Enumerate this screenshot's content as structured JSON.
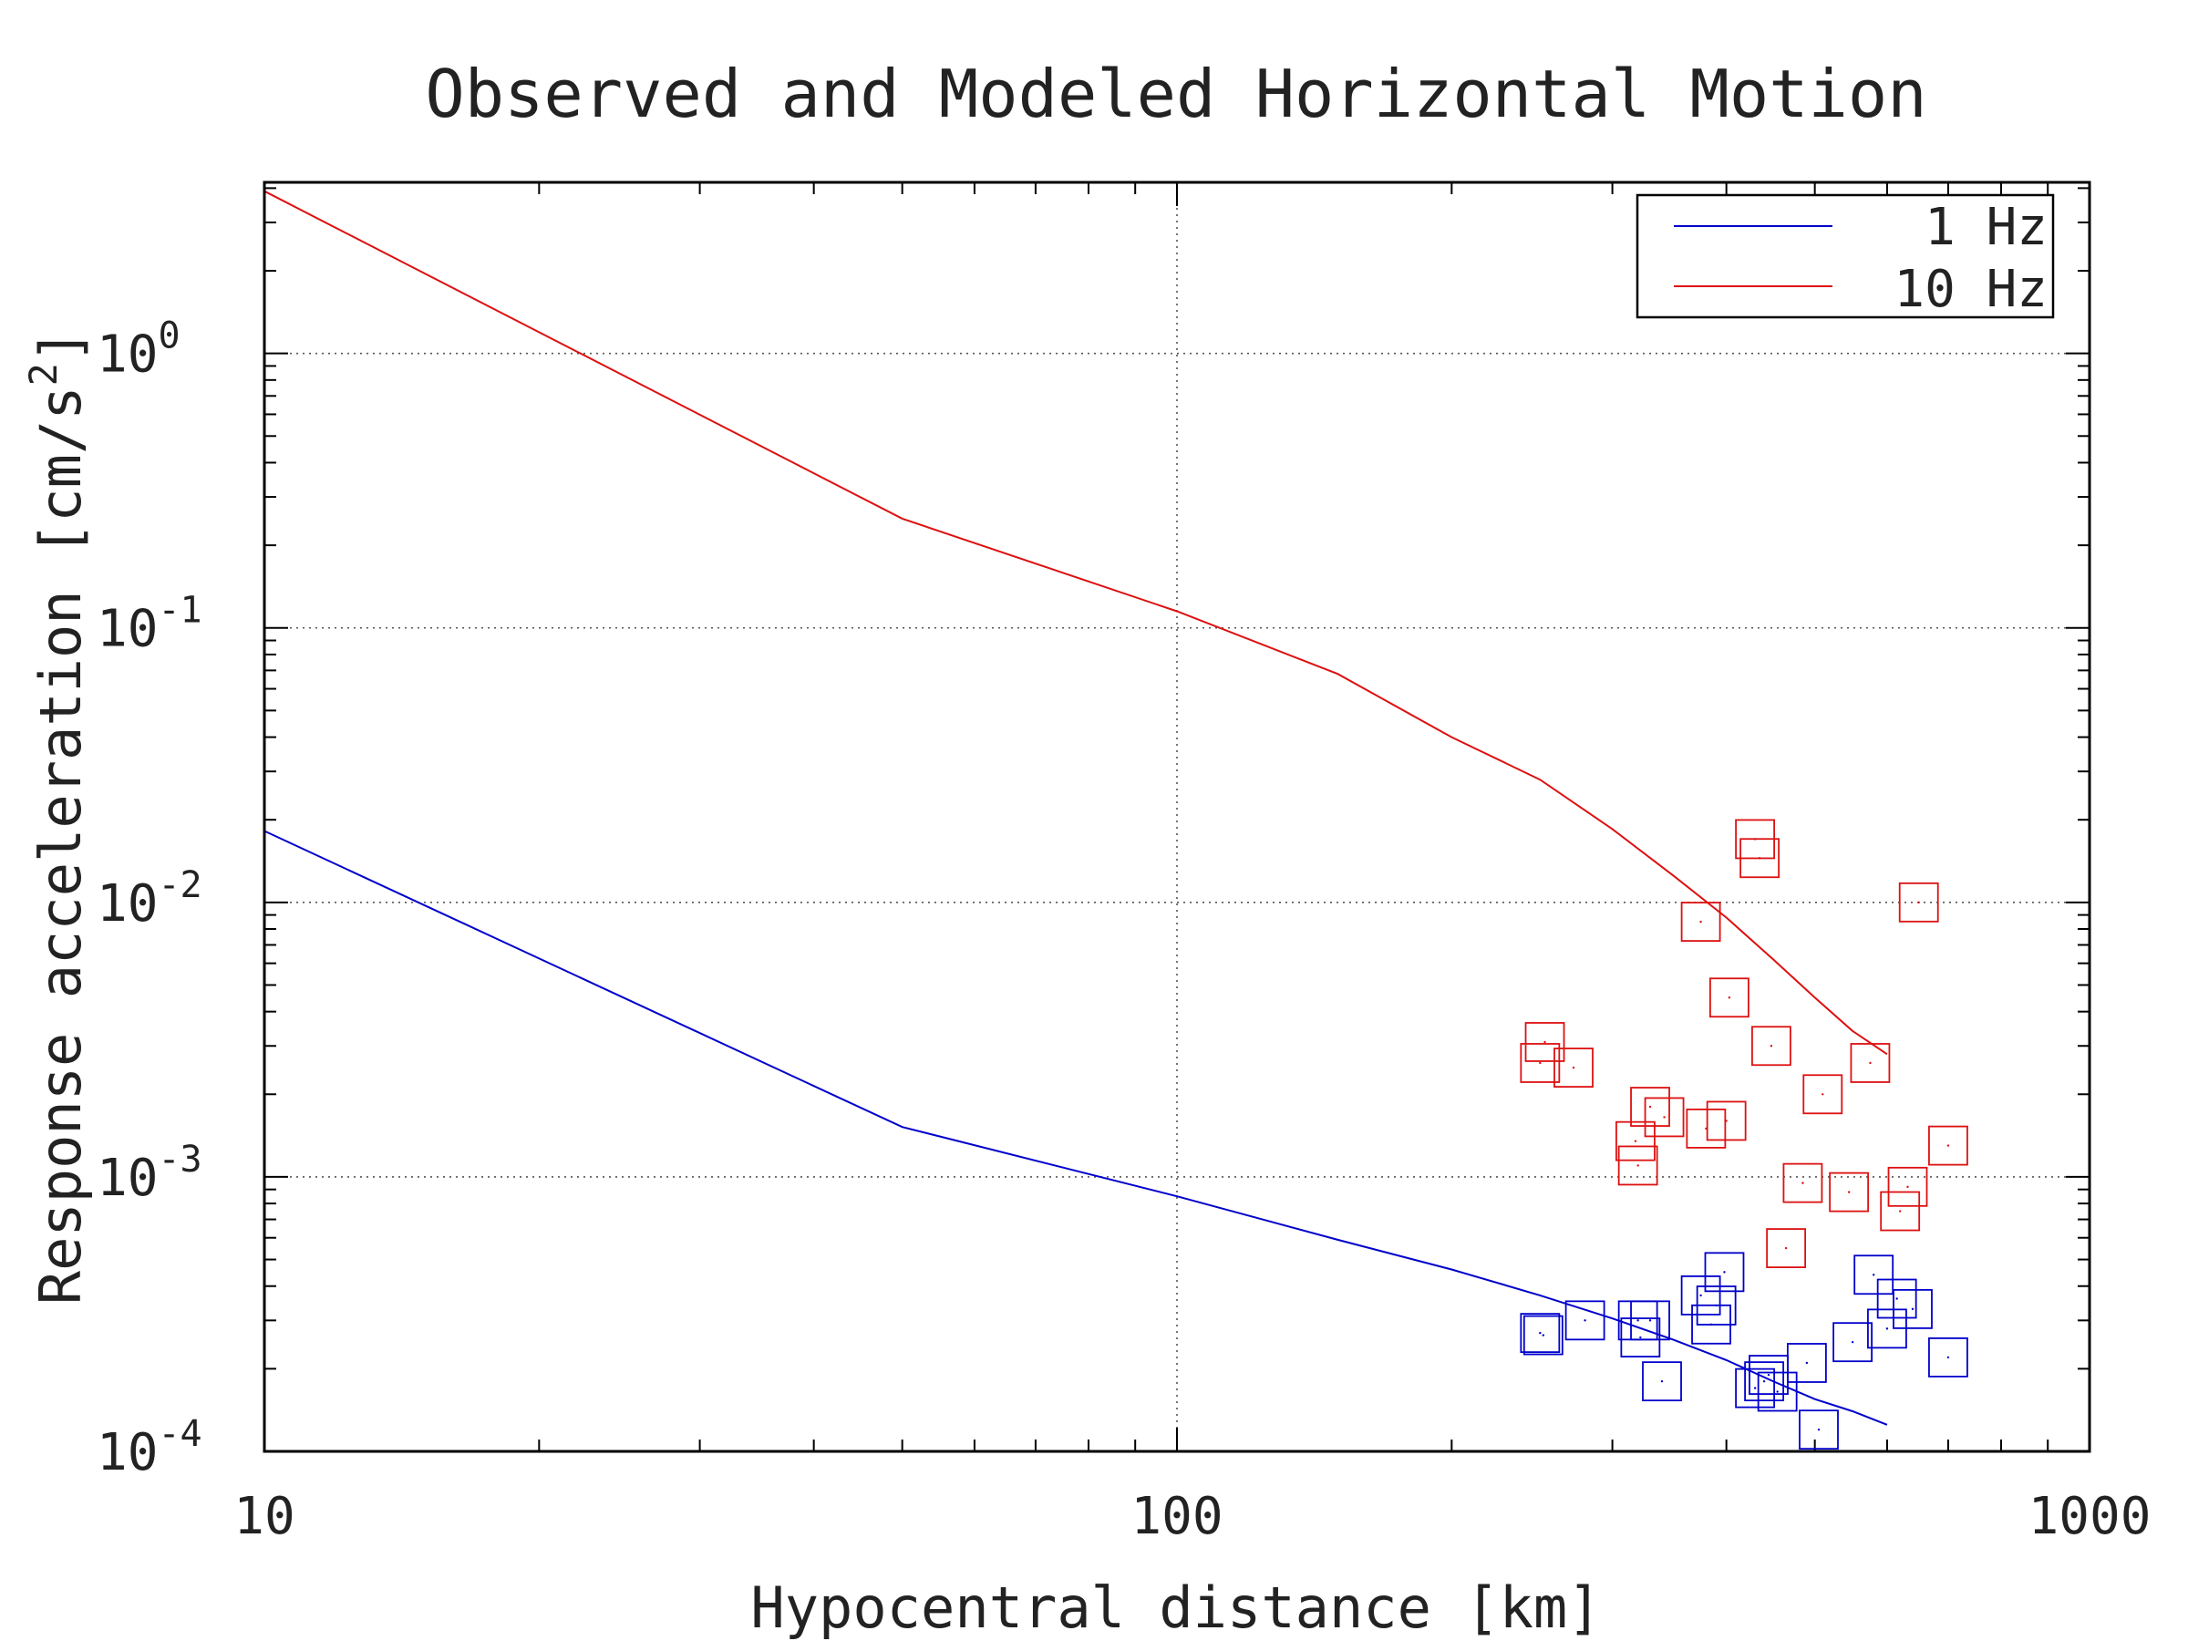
{
  "chart_data": {
    "type": "scatter",
    "title": "Observed and Modeled Horizontal Motion",
    "xlabel": "Hypocentral distance [km]",
    "ylabel": "Response acceleration [cm/s²]",
    "ylabel_parts": {
      "text": "Response acceleration [cm/s",
      "sup": "2",
      "close": "]"
    },
    "x_scale": "log",
    "y_scale": "log",
    "xlim": [
      10,
      1000
    ],
    "ylim": [
      0.0001,
      4.2
    ],
    "x_ticks": [
      {
        "value": 10,
        "label": "10"
      },
      {
        "value": 100,
        "label": "100"
      },
      {
        "value": 1000,
        "label": "1000"
      }
    ],
    "y_ticks": [
      {
        "value": 0.0001,
        "base": "10",
        "exp": "-4"
      },
      {
        "value": 0.001,
        "base": "10",
        "exp": "-3"
      },
      {
        "value": 0.01,
        "base": "10",
        "exp": "-2"
      },
      {
        "value": 0.1,
        "base": "10",
        "exp": "-1"
      },
      {
        "value": 1,
        "base": "10",
        "exp": "0"
      }
    ],
    "grid": true,
    "legend_position": "top-right",
    "series": [
      {
        "name": "1 Hz",
        "color": "#0000cc",
        "model_line": [
          [
            10,
            0.0182
          ],
          [
            50,
            0.00152
          ],
          [
            100,
            0.00085
          ],
          [
            150,
            0.00059
          ],
          [
            200,
            0.00046
          ],
          [
            250,
            0.00037
          ],
          [
            300,
            0.000305
          ],
          [
            350,
            0.000255
          ],
          [
            400,
            0.000215
          ],
          [
            450,
            0.00018
          ],
          [
            500,
            0.000155
          ],
          [
            550,
            0.00014
          ],
          [
            600,
            0.000125
          ]
        ],
        "observations": [
          [
            250,
            0.00027
          ],
          [
            252,
            0.000265
          ],
          [
            280,
            0.0003
          ],
          [
            320,
            0.0003
          ],
          [
            322,
            0.00026
          ],
          [
            330,
            0.0003
          ],
          [
            340,
            0.00018
          ],
          [
            375,
            0.00037
          ],
          [
            385,
            0.00029
          ],
          [
            390,
            0.00034
          ],
          [
            398,
            0.00045
          ],
          [
            430,
            0.00017
          ],
          [
            440,
            0.00018
          ],
          [
            445,
            0.00019
          ],
          [
            455,
            0.000165
          ],
          [
            490,
            0.00021
          ],
          [
            505,
            0.00012
          ],
          [
            550,
            0.00025
          ],
          [
            580,
            0.00044
          ],
          [
            600,
            0.00028
          ],
          [
            615,
            0.00036
          ],
          [
            640,
            0.00033
          ],
          [
            700,
            0.00022
          ]
        ]
      },
      {
        "name": "10 Hz",
        "color": "#dd1111",
        "model_line": [
          [
            10,
            3.9
          ],
          [
            50,
            0.25
          ],
          [
            100,
            0.115
          ],
          [
            150,
            0.068
          ],
          [
            200,
            0.04
          ],
          [
            250,
            0.028
          ],
          [
            300,
            0.0185
          ],
          [
            350,
            0.0125
          ],
          [
            400,
            0.0088
          ],
          [
            450,
            0.0062
          ],
          [
            500,
            0.0045
          ],
          [
            550,
            0.0034
          ],
          [
            600,
            0.0028
          ]
        ],
        "observations": [
          [
            250,
            0.0026
          ],
          [
            253,
            0.0031
          ],
          [
            272,
            0.0025
          ],
          [
            318,
            0.00135
          ],
          [
            320,
            0.0011
          ],
          [
            330,
            0.0018
          ],
          [
            342,
            0.00165
          ],
          [
            375,
            0.0085
          ],
          [
            380,
            0.0015
          ],
          [
            400,
            0.0016
          ],
          [
            403,
            0.0045
          ],
          [
            430,
            0.017
          ],
          [
            435,
            0.0145
          ],
          [
            448,
            0.003
          ],
          [
            465,
            0.00055
          ],
          [
            485,
            0.00095
          ],
          [
            510,
            0.002
          ],
          [
            545,
            0.00088
          ],
          [
            575,
            0.0026
          ],
          [
            620,
            0.00075
          ],
          [
            632,
            0.00092
          ],
          [
            650,
            0.01
          ],
          [
            700,
            0.0013
          ]
        ]
      }
    ]
  }
}
